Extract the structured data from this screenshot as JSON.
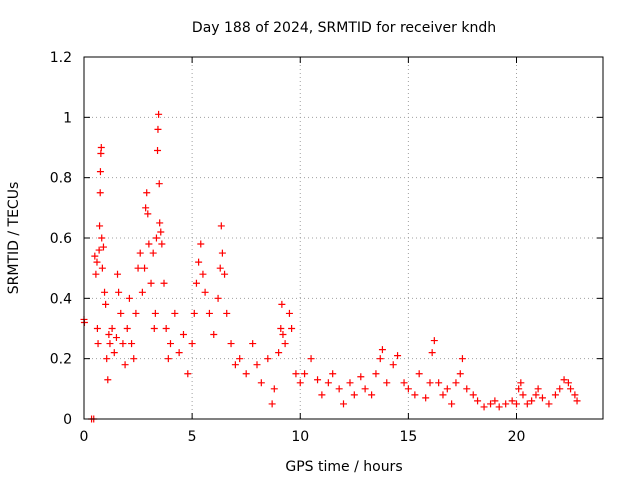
{
  "chart_data": {
    "type": "scatter",
    "title": "Day 188 of 2024, SRMTID for receiver kndh",
    "xlabel": "GPS time / hours",
    "ylabel": "SRMTID / TECUs",
    "xlim": [
      0,
      24
    ],
    "ylim": [
      0,
      1.2
    ],
    "xticks": [
      0,
      5,
      10,
      15,
      20
    ],
    "xtick_labels": [
      "0",
      "5",
      "10",
      "15",
      "20"
    ],
    "yticks": [
      0,
      0.2,
      0.4,
      0.6,
      0.8,
      1,
      1.2
    ],
    "ytick_labels": [
      "0",
      "0.2",
      "0.4",
      "0.6",
      "0.8",
      "1",
      "1.2"
    ],
    "grid": true,
    "marker": "+",
    "marker_color": "#ff0000",
    "series": [
      {
        "name": "SRMTID",
        "points": [
          [
            0.0,
            0.33
          ],
          [
            0.02,
            0.32
          ],
          [
            0.35,
            0.0
          ],
          [
            0.45,
            0.0
          ],
          [
            0.5,
            0.54
          ],
          [
            0.55,
            0.48
          ],
          [
            0.6,
            0.52
          ],
          [
            0.62,
            0.3
          ],
          [
            0.65,
            0.25
          ],
          [
            0.7,
            0.56
          ],
          [
            0.72,
            0.64
          ],
          [
            0.75,
            0.75
          ],
          [
            0.76,
            0.82
          ],
          [
            0.78,
            0.88
          ],
          [
            0.8,
            0.9
          ],
          [
            0.82,
            0.6
          ],
          [
            0.85,
            0.5
          ],
          [
            0.9,
            0.57
          ],
          [
            0.95,
            0.42
          ],
          [
            1.0,
            0.38
          ],
          [
            1.05,
            0.2
          ],
          [
            1.1,
            0.13
          ],
          [
            1.15,
            0.28
          ],
          [
            1.2,
            0.25
          ],
          [
            1.3,
            0.3
          ],
          [
            1.4,
            0.22
          ],
          [
            1.5,
            0.27
          ],
          [
            1.55,
            0.48
          ],
          [
            1.6,
            0.42
          ],
          [
            1.7,
            0.35
          ],
          [
            1.8,
            0.25
          ],
          [
            1.9,
            0.18
          ],
          [
            2.0,
            0.3
          ],
          [
            2.1,
            0.4
          ],
          [
            2.2,
            0.25
          ],
          [
            2.3,
            0.2
          ],
          [
            2.4,
            0.35
          ],
          [
            2.5,
            0.5
          ],
          [
            2.6,
            0.55
          ],
          [
            2.7,
            0.42
          ],
          [
            2.8,
            0.5
          ],
          [
            2.85,
            0.7
          ],
          [
            2.9,
            0.75
          ],
          [
            2.95,
            0.68
          ],
          [
            3.0,
            0.58
          ],
          [
            3.1,
            0.45
          ],
          [
            3.2,
            0.55
          ],
          [
            3.25,
            0.3
          ],
          [
            3.3,
            0.35
          ],
          [
            3.35,
            0.6
          ],
          [
            3.4,
            0.89
          ],
          [
            3.42,
            0.96
          ],
          [
            3.45,
            1.01
          ],
          [
            3.48,
            0.78
          ],
          [
            3.5,
            0.65
          ],
          [
            3.55,
            0.62
          ],
          [
            3.6,
            0.58
          ],
          [
            3.7,
            0.45
          ],
          [
            3.8,
            0.3
          ],
          [
            3.9,
            0.2
          ],
          [
            4.0,
            0.25
          ],
          [
            4.2,
            0.35
          ],
          [
            4.4,
            0.22
          ],
          [
            4.6,
            0.28
          ],
          [
            4.8,
            0.15
          ],
          [
            5.0,
            0.25
          ],
          [
            5.1,
            0.35
          ],
          [
            5.2,
            0.45
          ],
          [
            5.3,
            0.52
          ],
          [
            5.4,
            0.58
          ],
          [
            5.5,
            0.48
          ],
          [
            5.6,
            0.42
          ],
          [
            5.8,
            0.35
          ],
          [
            6.0,
            0.28
          ],
          [
            6.2,
            0.4
          ],
          [
            6.3,
            0.5
          ],
          [
            6.35,
            0.64
          ],
          [
            6.4,
            0.55
          ],
          [
            6.5,
            0.48
          ],
          [
            6.6,
            0.35
          ],
          [
            6.8,
            0.25
          ],
          [
            7.0,
            0.18
          ],
          [
            7.2,
            0.2
          ],
          [
            7.5,
            0.15
          ],
          [
            7.8,
            0.25
          ],
          [
            8.0,
            0.18
          ],
          [
            8.2,
            0.12
          ],
          [
            8.5,
            0.2
          ],
          [
            8.7,
            0.05
          ],
          [
            8.8,
            0.1
          ],
          [
            9.0,
            0.22
          ],
          [
            9.1,
            0.3
          ],
          [
            9.15,
            0.38
          ],
          [
            9.2,
            0.28
          ],
          [
            9.3,
            0.25
          ],
          [
            9.5,
            0.35
          ],
          [
            9.6,
            0.3
          ],
          [
            9.8,
            0.15
          ],
          [
            10.0,
            0.12
          ],
          [
            10.2,
            0.15
          ],
          [
            10.5,
            0.2
          ],
          [
            10.8,
            0.13
          ],
          [
            11.0,
            0.08
          ],
          [
            11.3,
            0.12
          ],
          [
            11.5,
            0.15
          ],
          [
            11.8,
            0.1
          ],
          [
            12.0,
            0.05
          ],
          [
            12.3,
            0.12
          ],
          [
            12.5,
            0.08
          ],
          [
            12.8,
            0.14
          ],
          [
            13.0,
            0.1
          ],
          [
            13.3,
            0.08
          ],
          [
            13.5,
            0.15
          ],
          [
            13.7,
            0.2
          ],
          [
            13.8,
            0.23
          ],
          [
            14.0,
            0.12
          ],
          [
            14.3,
            0.18
          ],
          [
            14.5,
            0.21
          ],
          [
            14.8,
            0.12
          ],
          [
            15.0,
            0.1
          ],
          [
            15.3,
            0.08
          ],
          [
            15.5,
            0.15
          ],
          [
            15.8,
            0.07
          ],
          [
            16.0,
            0.12
          ],
          [
            16.1,
            0.22
          ],
          [
            16.2,
            0.26
          ],
          [
            16.4,
            0.12
          ],
          [
            16.6,
            0.08
          ],
          [
            16.8,
            0.1
          ],
          [
            17.0,
            0.05
          ],
          [
            17.2,
            0.12
          ],
          [
            17.4,
            0.15
          ],
          [
            17.5,
            0.2
          ],
          [
            17.7,
            0.1
          ],
          [
            18.0,
            0.08
          ],
          [
            18.2,
            0.06
          ],
          [
            18.5,
            0.04
          ],
          [
            18.8,
            0.05
          ],
          [
            19.0,
            0.06
          ],
          [
            19.2,
            0.04
          ],
          [
            19.5,
            0.05
          ],
          [
            19.8,
            0.06
          ],
          [
            20.0,
            0.05
          ],
          [
            20.1,
            0.1
          ],
          [
            20.2,
            0.12
          ],
          [
            20.3,
            0.08
          ],
          [
            20.5,
            0.05
          ],
          [
            20.7,
            0.06
          ],
          [
            20.9,
            0.08
          ],
          [
            21.0,
            0.1
          ],
          [
            21.2,
            0.07
          ],
          [
            21.5,
            0.05
          ],
          [
            21.8,
            0.08
          ],
          [
            22.0,
            0.1
          ],
          [
            22.2,
            0.13
          ],
          [
            22.4,
            0.12
          ],
          [
            22.5,
            0.1
          ],
          [
            22.7,
            0.08
          ],
          [
            22.8,
            0.06
          ]
        ]
      }
    ]
  }
}
